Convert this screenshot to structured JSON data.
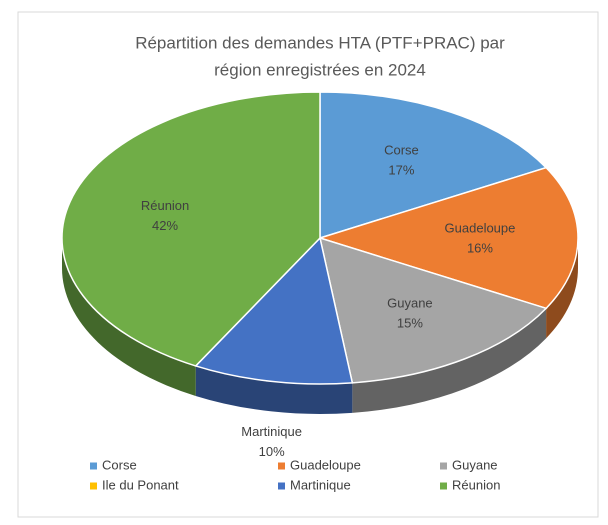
{
  "chart_data": {
    "type": "pie3d",
    "title": [
      "Répartition des demandes HTA (PTF+PRAC) par",
      "région  enregistrées en 2024"
    ],
    "categories": [
      "Corse",
      "Guadeloupe",
      "Guyane",
      "Ile du Ponant",
      "Martinique",
      "Réunion"
    ],
    "values": [
      17,
      16,
      15,
      0,
      10,
      42
    ],
    "value_labels": [
      "17%",
      "16%",
      "15%",
      null,
      "10%",
      "42%"
    ],
    "colors": [
      "#5b9bd5",
      "#ed7d31",
      "#a5a5a5",
      "#ffc000",
      "#4472c4",
      "#70ad47"
    ],
    "legend": "bottom"
  }
}
